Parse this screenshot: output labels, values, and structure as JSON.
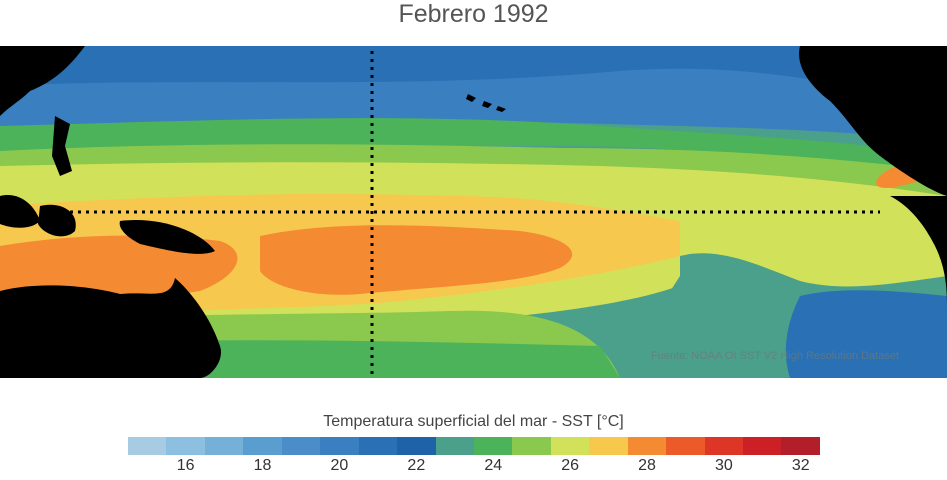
{
  "title": "Febrero 1992",
  "source": "Fuente: NOAA OI SST V2 High Resolution Dataset",
  "colorbar": {
    "label": "Temperatura superficial del mar - SST  [°C]",
    "min": 15,
    "max": 33,
    "colors": [
      "#a6cbe3",
      "#8dbfe0",
      "#75b0d8",
      "#5a9dcf",
      "#4a8dc8",
      "#3a7fc0",
      "#2a70b5",
      "#1f62a8",
      "#4aa08a",
      "#4cb35a",
      "#8ac84e",
      "#d2e15a",
      "#f7c84e",
      "#f48b33",
      "#ec5a2a",
      "#dd3626",
      "#cc1f26",
      "#b21f2a"
    ],
    "ticks": [
      "16",
      "18",
      "20",
      "22",
      "24",
      "26",
      "28",
      "30",
      "32"
    ]
  }
}
